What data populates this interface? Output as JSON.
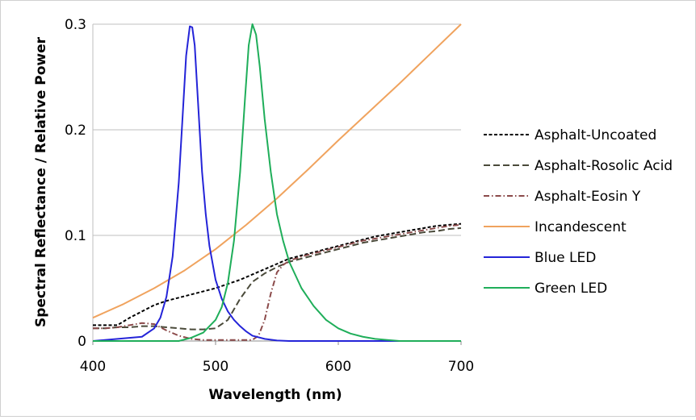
{
  "chart_data": {
    "type": "line",
    "title": "",
    "xlabel": "Wavelength (nm)",
    "ylabel": "Spectral Reflectance / Relative Power",
    "xlim": [
      400,
      700
    ],
    "ylim": [
      0,
      0.3
    ],
    "xticks": [
      400,
      500,
      600,
      700
    ],
    "yticks": [
      0,
      0.1,
      0.2,
      0.3
    ],
    "ytick_labels": [
      "0",
      "0.1",
      "0.2",
      "0.3"
    ],
    "grid": "horizontal",
    "legend_position": "right",
    "series": [
      {
        "name": "Asphalt-Uncoated",
        "color": "#000000",
        "dash": "short-dash",
        "x": [
          400,
          410,
          420,
          430,
          440,
          450,
          460,
          470,
          480,
          490,
          500,
          510,
          520,
          530,
          540,
          550,
          560,
          570,
          580,
          590,
          600,
          610,
          620,
          630,
          640,
          650,
          660,
          670,
          680,
          690,
          700
        ],
        "y": [
          0.015,
          0.015,
          0.015,
          0.022,
          0.028,
          0.034,
          0.038,
          0.041,
          0.044,
          0.047,
          0.05,
          0.054,
          0.058,
          0.063,
          0.068,
          0.073,
          0.078,
          0.081,
          0.084,
          0.087,
          0.09,
          0.093,
          0.096,
          0.099,
          0.101,
          0.103,
          0.105,
          0.107,
          0.109,
          0.11,
          0.111
        ]
      },
      {
        "name": "Asphalt-Rosolic Acid",
        "color": "#4a4a3a",
        "dash": "long-dash",
        "x": [
          400,
          410,
          420,
          430,
          440,
          450,
          460,
          470,
          480,
          490,
          500,
          510,
          520,
          530,
          540,
          550,
          560,
          570,
          580,
          590,
          600,
          610,
          620,
          630,
          640,
          650,
          660,
          670,
          680,
          690,
          700
        ],
        "y": [
          0.012,
          0.012,
          0.013,
          0.013,
          0.014,
          0.014,
          0.013,
          0.012,
          0.011,
          0.011,
          0.012,
          0.02,
          0.04,
          0.056,
          0.064,
          0.07,
          0.075,
          0.078,
          0.081,
          0.084,
          0.087,
          0.09,
          0.093,
          0.095,
          0.097,
          0.099,
          0.101,
          0.103,
          0.104,
          0.106,
          0.107
        ]
      },
      {
        "name": "Asphalt-Eosin Y",
        "color": "#8b4a4a",
        "dash": "dash-dot",
        "x": [
          400,
          410,
          420,
          430,
          440,
          450,
          460,
          470,
          480,
          490,
          500,
          510,
          520,
          530,
          535,
          540,
          545,
          550,
          555,
          560,
          570,
          580,
          590,
          600,
          610,
          620,
          630,
          640,
          650,
          660,
          670,
          680,
          690,
          700
        ],
        "y": [
          0.012,
          0.012,
          0.013,
          0.015,
          0.017,
          0.016,
          0.01,
          0.005,
          0.002,
          0.001,
          0.001,
          0.001,
          0.001,
          0.001,
          0.005,
          0.02,
          0.045,
          0.065,
          0.072,
          0.076,
          0.08,
          0.083,
          0.086,
          0.089,
          0.092,
          0.095,
          0.097,
          0.099,
          0.101,
          0.103,
          0.105,
          0.107,
          0.109,
          0.11
        ]
      },
      {
        "name": "Incandescent",
        "color": "#f0a35e",
        "dash": "solid",
        "x": [
          400,
          425,
          450,
          475,
          500,
          525,
          550,
          575,
          600,
          625,
          650,
          675,
          700
        ],
        "y": [
          0.022,
          0.035,
          0.05,
          0.067,
          0.087,
          0.11,
          0.135,
          0.162,
          0.19,
          0.217,
          0.244,
          0.272,
          0.3
        ]
      },
      {
        "name": "Blue LED",
        "color": "#2424d8",
        "dash": "solid",
        "x": [
          400,
          440,
          450,
          455,
          460,
          465,
          470,
          473,
          476,
          479,
          481,
          483,
          486,
          489,
          492,
          495,
          500,
          505,
          510,
          515,
          520,
          525,
          530,
          540,
          550,
          560,
          570,
          700
        ],
        "y": [
          0,
          0.004,
          0.012,
          0.022,
          0.042,
          0.08,
          0.15,
          0.21,
          0.27,
          0.298,
          0.297,
          0.28,
          0.22,
          0.16,
          0.12,
          0.09,
          0.058,
          0.04,
          0.028,
          0.02,
          0.014,
          0.009,
          0.005,
          0.002,
          0.0005,
          0,
          0,
          0
        ]
      },
      {
        "name": "Green LED",
        "color": "#1fae5a",
        "dash": "solid",
        "x": [
          400,
          470,
          480,
          490,
          500,
          505,
          510,
          515,
          520,
          524,
          527,
          530,
          533,
          536,
          540,
          545,
          550,
          555,
          560,
          570,
          580,
          590,
          600,
          610,
          620,
          630,
          640,
          650,
          700
        ],
        "y": [
          0,
          0,
          0.003,
          0.008,
          0.02,
          0.032,
          0.055,
          0.095,
          0.16,
          0.23,
          0.28,
          0.3,
          0.29,
          0.26,
          0.21,
          0.16,
          0.12,
          0.095,
          0.075,
          0.05,
          0.033,
          0.02,
          0.012,
          0.007,
          0.004,
          0.002,
          0.001,
          0,
          0
        ]
      }
    ]
  }
}
